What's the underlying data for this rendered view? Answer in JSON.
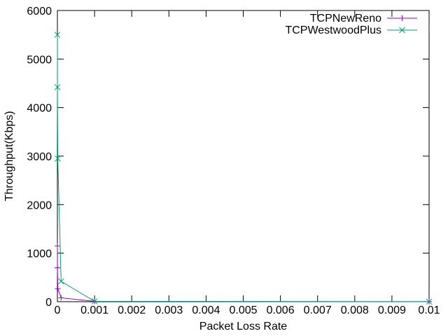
{
  "chart_data": {
    "type": "line",
    "title": "",
    "xlabel": "Packet Loss Rate",
    "ylabel": "Throughput(Kbps)",
    "xlim": [
      0,
      0.01
    ],
    "ylim": [
      0,
      6000
    ],
    "xticks": [
      0,
      0.001,
      0.002,
      0.003,
      0.004,
      0.005,
      0.006,
      0.007,
      0.008,
      0.009,
      0.01
    ],
    "xtick_labels": [
      "0",
      "0.001",
      "0.002",
      "0.003",
      "0.004",
      "0.005",
      "0.006",
      "0.007",
      "0.008",
      "0.009",
      "0.01"
    ],
    "yticks": [
      0,
      1000,
      2000,
      3000,
      4000,
      5000,
      6000
    ],
    "ytick_labels": [
      "0",
      "1000",
      "2000",
      "3000",
      "4000",
      "5000",
      "6000"
    ],
    "grid": false,
    "legend_position": "top-right",
    "series": [
      {
        "name": "TCPNewReno",
        "color": "#9400d3",
        "marker": "plus",
        "points": [
          [
            1e-07,
            1150
          ],
          [
            1e-06,
            700
          ],
          [
            1e-05,
            270
          ],
          [
            0.0001,
            80
          ],
          [
            0.001,
            8
          ],
          [
            0.01,
            1
          ]
        ]
      },
      {
        "name": "TCPWestwoodPlus",
        "color": "#009e73",
        "marker": "x",
        "points": [
          [
            1e-07,
            5500
          ],
          [
            1e-06,
            4420
          ],
          [
            1e-05,
            2950
          ],
          [
            0.0001,
            420
          ],
          [
            0.001,
            8
          ],
          [
            0.01,
            1
          ]
        ]
      }
    ]
  }
}
